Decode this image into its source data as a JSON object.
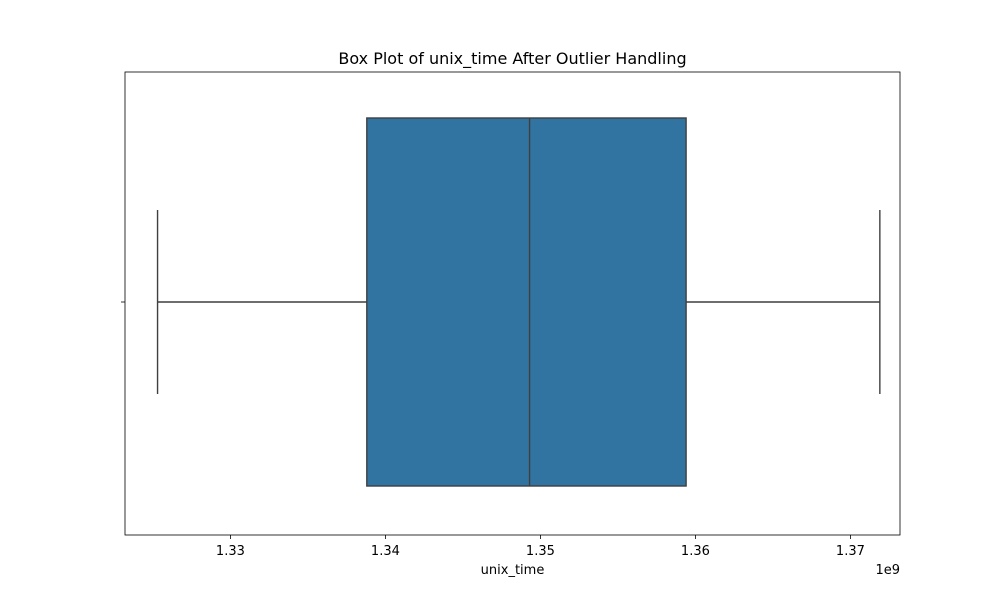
{
  "chart_data": {
    "type": "box",
    "title": "Box Plot of unix_time After Outlier Handling",
    "xlabel": "unix_time",
    "ylabel": "",
    "x_offset_label": "1e9",
    "xlim": [
      1.3232,
      1.3732
    ],
    "x_ticks": [
      1.33,
      1.34,
      1.35,
      1.36,
      1.37
    ],
    "x_tick_labels": [
      "1.33",
      "1.34",
      "1.35",
      "1.36",
      "1.37"
    ],
    "orientation": "horizontal",
    "grid": false,
    "box": {
      "whisker_low": 1.3253,
      "q1": 1.3388,
      "median": 1.3493,
      "q3": 1.3594,
      "whisker_high": 1.3719
    },
    "box_color": "#3274a1",
    "line_color": "#3f3f3f"
  }
}
